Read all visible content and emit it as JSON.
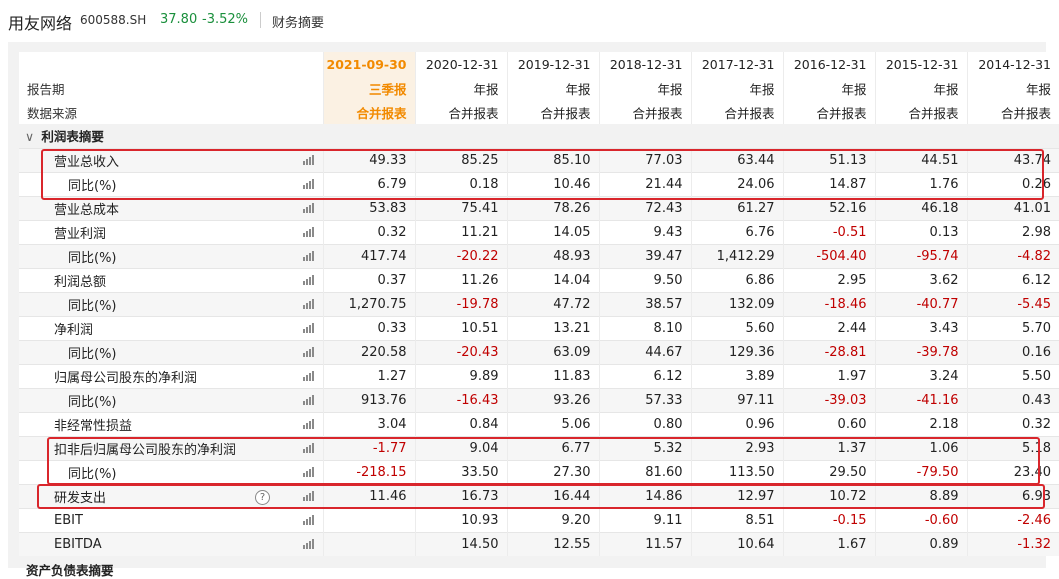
{
  "header": {
    "company": "用友网络",
    "code": "600588.SH",
    "price": "37.80",
    "change": "-3.52%",
    "subtitle": "财务摘要"
  },
  "table": {
    "periods": [
      "2021-09-30",
      "2020-12-31",
      "2019-12-31",
      "2018-12-31",
      "2017-12-31",
      "2016-12-31",
      "2015-12-31",
      "2014-12-31"
    ],
    "report_types": [
      "三季报",
      "年报",
      "年报",
      "年报",
      "年报",
      "年报",
      "年报",
      "年报"
    ],
    "sources": [
      "合并报表",
      "合并报表",
      "合并报表",
      "合并报表",
      "合并报表",
      "合并报表",
      "合并报表",
      "合并报表"
    ],
    "row_label_period": "报告期",
    "row_label_source": "数据来源",
    "section_title": "利润表摘要",
    "section_next": "资产负债表摘要",
    "rows": [
      {
        "label": "营业总收入",
        "values": [
          "49.33",
          "85.25",
          "85.10",
          "77.03",
          "63.44",
          "51.13",
          "44.51",
          "43.74"
        ]
      },
      {
        "label": "同比(%)",
        "values": [
          "6.79",
          "0.18",
          "10.46",
          "21.44",
          "24.06",
          "14.87",
          "1.76",
          "0.26"
        ]
      },
      {
        "label": "营业总成本",
        "values": [
          "53.83",
          "75.41",
          "78.26",
          "72.43",
          "61.27",
          "52.16",
          "46.18",
          "41.01"
        ]
      },
      {
        "label": "营业利润",
        "values": [
          "0.32",
          "11.21",
          "14.05",
          "9.43",
          "6.76",
          "-0.51",
          "0.13",
          "2.98"
        ]
      },
      {
        "label": "同比(%)",
        "values": [
          "417.74",
          "-20.22",
          "48.93",
          "39.47",
          "1,412.29",
          "-504.40",
          "-95.74",
          "-4.82"
        ]
      },
      {
        "label": "利润总额",
        "values": [
          "0.37",
          "11.26",
          "14.04",
          "9.50",
          "6.86",
          "2.95",
          "3.62",
          "6.12"
        ]
      },
      {
        "label": "同比(%)",
        "values": [
          "1,270.75",
          "-19.78",
          "47.72",
          "38.57",
          "132.09",
          "-18.46",
          "-40.77",
          "-5.45"
        ]
      },
      {
        "label": "净利润",
        "values": [
          "0.33",
          "10.51",
          "13.21",
          "8.10",
          "5.60",
          "2.44",
          "3.43",
          "5.70"
        ]
      },
      {
        "label": "同比(%)",
        "values": [
          "220.58",
          "-20.43",
          "63.09",
          "44.67",
          "129.36",
          "-28.81",
          "-39.78",
          "0.16"
        ]
      },
      {
        "label": "归属母公司股东的净利润",
        "values": [
          "1.27",
          "9.89",
          "11.83",
          "6.12",
          "3.89",
          "1.97",
          "3.24",
          "5.50"
        ]
      },
      {
        "label": "同比(%)",
        "values": [
          "913.76",
          "-16.43",
          "93.26",
          "57.33",
          "97.11",
          "-39.03",
          "-41.16",
          "0.43"
        ]
      },
      {
        "label": "非经常性损益",
        "values": [
          "3.04",
          "0.84",
          "5.06",
          "0.80",
          "0.96",
          "0.60",
          "2.18",
          "0.32"
        ]
      },
      {
        "label": "扣非后归属母公司股东的净利润",
        "values": [
          "-1.77",
          "9.04",
          "6.77",
          "5.32",
          "2.93",
          "1.37",
          "1.06",
          "5.18"
        ]
      },
      {
        "label": "同比(%)",
        "values": [
          "-218.15",
          "33.50",
          "27.30",
          "81.60",
          "113.50",
          "29.50",
          "-79.50",
          "23.40"
        ]
      },
      {
        "label": "研发支出",
        "values": [
          "11.46",
          "16.73",
          "16.44",
          "14.86",
          "12.97",
          "10.72",
          "8.89",
          "6.93"
        ]
      },
      {
        "label": "EBIT",
        "values": [
          "",
          "10.93",
          "9.20",
          "9.11",
          "8.51",
          "-0.15",
          "-0.60",
          "-2.46"
        ]
      },
      {
        "label": "EBITDA",
        "values": [
          "",
          "14.50",
          "12.55",
          "11.57",
          "10.64",
          "1.67",
          "0.89",
          "-1.32"
        ]
      }
    ]
  },
  "icons": {
    "row_chart": "bar-chart-icon",
    "help": "question-mark-icon",
    "collapse": "caret-down-icon"
  },
  "colors": {
    "current_period": "#f28a00",
    "positive_price": "#1a8f3c",
    "negative_value": "#c00000",
    "highlight_box": "#d9262c"
  }
}
